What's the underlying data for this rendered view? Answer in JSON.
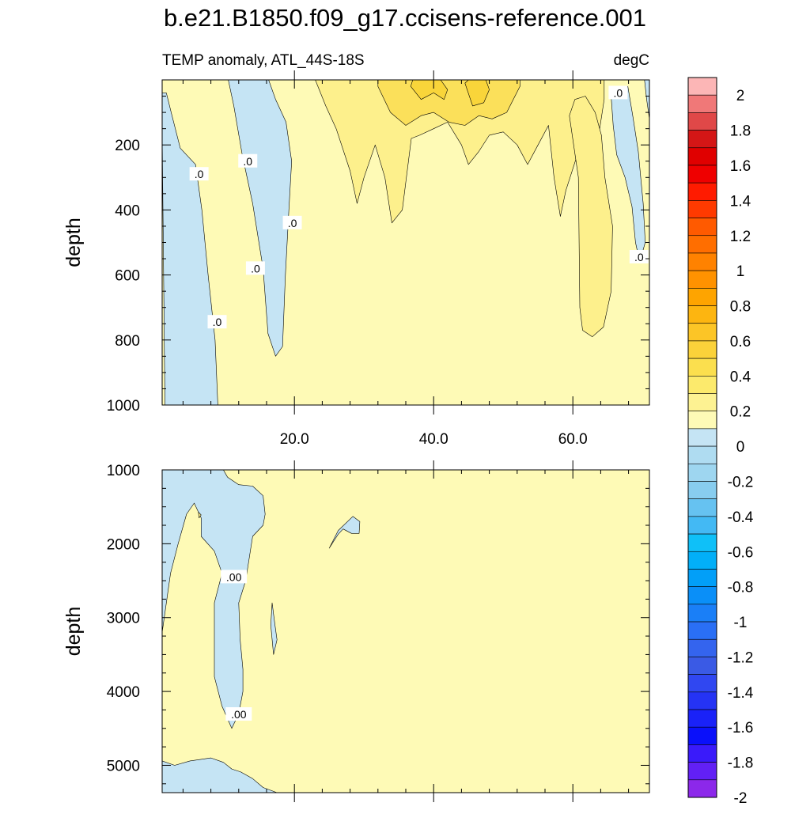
{
  "title": "b.e21.B1850.f09_g17.ccisens-reference.001",
  "subtitle_left": "TEMP anomaly, ATL_44S-18S",
  "subtitle_right": "degC",
  "colors": {
    "pos_fill": "#fefab6",
    "neg_fill": "#c5e4f4",
    "pos_medium": "#fdf08c",
    "pos_strong": "#fbe05a",
    "pos_deep": "#f9d53a",
    "outline": "#000000"
  },
  "chart_data": [
    {
      "type": "heatmap",
      "panel": "upper",
      "ylabel": "depth",
      "xlim": [
        1,
        71
      ],
      "ylim": [
        0,
        1000
      ],
      "y_inverted": true,
      "x_ticks": [
        20,
        40,
        60
      ],
      "x_tick_labels": [
        "20.0",
        "40.0",
        "60.0"
      ],
      "x_tick_labels_position": "bottom",
      "y_ticks": [
        200,
        400,
        600,
        800,
        1000
      ],
      "y_tick_labels": [
        "200",
        "400",
        "600",
        "800",
        "1000"
      ],
      "contour_labels": [
        {
          "text": ".0",
          "x": 6.3,
          "y": 290
        },
        {
          "text": ".0",
          "x": 13.3,
          "y": 250
        },
        {
          "text": ".0",
          "x": 19.7,
          "y": 440
        },
        {
          "text": ".0",
          "x": 14.4,
          "y": 580
        },
        {
          "text": ".0",
          "x": 8.9,
          "y": 745
        },
        {
          "text": ".0",
          "x": 66.5,
          "y": 40
        },
        {
          "text": ".0",
          "x": 69.5,
          "y": 545
        }
      ],
      "regions": [
        {
          "sign": "negative",
          "level": "0 to -0.2",
          "points": [
            [
              1,
              160
            ],
            [
              1.4,
              1000
            ],
            [
              9,
              1000
            ],
            [
              8.6,
              800
            ],
            [
              7.6,
              600
            ],
            [
              6.7,
              400
            ],
            [
              5.8,
              260
            ],
            [
              3.6,
              210
            ],
            [
              2.3,
              100
            ],
            [
              1.6,
              40
            ],
            [
              1,
              40
            ]
          ]
        },
        {
          "sign": "negative",
          "level": "0 to -0.2",
          "points": [
            [
              10.5,
              0
            ],
            [
              11.3,
              80
            ],
            [
              12.5,
              230
            ],
            [
              14,
              380
            ],
            [
              15.5,
              580
            ],
            [
              16.2,
              780
            ],
            [
              17.3,
              850
            ],
            [
              18.3,
              820
            ],
            [
              18.7,
              600
            ],
            [
              19.2,
              400
            ],
            [
              19.6,
              250
            ],
            [
              18.8,
              130
            ],
            [
              17.3,
              60
            ],
            [
              16.3,
              0
            ]
          ]
        },
        {
          "sign": "negative",
          "level": "0 to -0.2",
          "points": [
            [
              65.4,
              20
            ],
            [
              65.8,
              140
            ],
            [
              66.3,
              230
            ],
            [
              67.5,
              300
            ],
            [
              68.5,
              390
            ],
            [
              69,
              500
            ],
            [
              69.6,
              560
            ],
            [
              70.4,
              500
            ],
            [
              70.1,
              380
            ],
            [
              69.4,
              220
            ],
            [
              68.6,
              110
            ],
            [
              67.9,
              20
            ]
          ]
        },
        {
          "sign": "negative",
          "level": "0 to -0.2",
          "points": [
            [
              70.3,
              0
            ],
            [
              71,
              0
            ],
            [
              71,
              120
            ],
            [
              70.6,
              60
            ]
          ]
        },
        {
          "sign": "positive",
          "level": "0 to 0.2",
          "points": [
            [
              23,
              0
            ],
            [
              24.5,
              80
            ],
            [
              26,
              150
            ],
            [
              28,
              280
            ],
            [
              29,
              380
            ],
            [
              30,
              300
            ],
            [
              31.6,
              200
            ],
            [
              33,
              300
            ],
            [
              34,
              440
            ],
            [
              35.5,
              400
            ],
            [
              36.8,
              180
            ],
            [
              38,
              170
            ],
            [
              40,
              150
            ],
            [
              42,
              130
            ],
            [
              44,
              200
            ],
            [
              45,
              260
            ],
            [
              46.5,
              220
            ],
            [
              48,
              170
            ],
            [
              50,
              160
            ],
            [
              52,
              200
            ],
            [
              53.5,
              260
            ],
            [
              55,
              200
            ],
            [
              56.5,
              140
            ],
            [
              57.3,
              300
            ],
            [
              58.2,
              420
            ],
            [
              59,
              340
            ],
            [
              60.5,
              240
            ],
            [
              61.5,
              400
            ],
            [
              62.5,
              330
            ],
            [
              63.5,
              200
            ],
            [
              64.5,
              60
            ],
            [
              64.5,
              0
            ]
          ]
        },
        {
          "sign": "positive",
          "level": "0 to 0.2",
          "points": [
            [
              59.5,
              110
            ],
            [
              60.8,
              300
            ],
            [
              60.9,
              500
            ],
            [
              61,
              700
            ],
            [
              61.4,
              770
            ],
            [
              62.8,
              790
            ],
            [
              64.4,
              760
            ],
            [
              65.5,
              650
            ],
            [
              65.7,
              450
            ],
            [
              64.6,
              300
            ],
            [
              64.1,
              170
            ],
            [
              63.2,
              100
            ],
            [
              61.8,
              50
            ],
            [
              60.3,
              60
            ]
          ]
        },
        {
          "sign": "positive",
          "level": "0.2 to 0.4",
          "points": [
            [
              32,
              20
            ],
            [
              33.8,
              100
            ],
            [
              36,
              140
            ],
            [
              38.2,
              110
            ],
            [
              40,
              100
            ],
            [
              42.2,
              130
            ],
            [
              44.5,
              140
            ],
            [
              46.5,
              110
            ],
            [
              48.4,
              120
            ],
            [
              50.5,
              100
            ],
            [
              52.4,
              20
            ],
            [
              52.4,
              0
            ],
            [
              32,
              0
            ]
          ]
        },
        {
          "sign": "positive",
          "level": "0.4 to 0.6",
          "points": [
            [
              36.7,
              20
            ],
            [
              38.2,
              60
            ],
            [
              40,
              40
            ],
            [
              41.5,
              60
            ],
            [
              42,
              30
            ],
            [
              41,
              0
            ],
            [
              37,
              0
            ]
          ]
        },
        {
          "sign": "positive",
          "level": "0.4 to 0.6",
          "points": [
            [
              44.5,
              10
            ],
            [
              45.6,
              80
            ],
            [
              47.2,
              70
            ],
            [
              48,
              30
            ],
            [
              47.5,
              0
            ],
            [
              45,
              0
            ]
          ]
        }
      ]
    },
    {
      "type": "heatmap",
      "panel": "lower",
      "ylabel": "depth",
      "xlim": [
        1,
        71
      ],
      "ylim": [
        1000,
        5370
      ],
      "y_inverted": true,
      "y_ticks": [
        1000,
        2000,
        3000,
        4000,
        5000
      ],
      "y_tick_labels": [
        "1000",
        "2000",
        "3000",
        "4000",
        "5000"
      ],
      "contour_labels": [
        {
          "text": ".00",
          "x": 11.3,
          "y": 2450
        },
        {
          "text": ".00",
          "x": 12,
          "y": 4310
        }
      ],
      "regions": [
        {
          "sign": "negative",
          "level": "0 to -0.2",
          "points": [
            [
              1,
              1000
            ],
            [
              1,
              3200
            ],
            [
              2.2,
              2400
            ],
            [
              3.3,
              2000
            ],
            [
              4.5,
              1600
            ],
            [
              5.6,
              1450
            ],
            [
              6.6,
              1650
            ],
            [
              6.6,
              1900
            ],
            [
              8.5,
              2100
            ],
            [
              9.6,
              2400
            ],
            [
              8.5,
              2800
            ],
            [
              8.5,
              3200
            ],
            [
              8.5,
              3800
            ],
            [
              9.6,
              4200
            ],
            [
              11,
              4500
            ],
            [
              12,
              4300
            ],
            [
              12.6,
              4000
            ],
            [
              12.6,
              3700
            ],
            [
              12.2,
              3300
            ],
            [
              12,
              2800
            ],
            [
              13,
              2500
            ],
            [
              13.5,
              2200
            ],
            [
              14,
              1900
            ],
            [
              15.5,
              1750
            ],
            [
              15.8,
              1600
            ],
            [
              15.5,
              1350
            ],
            [
              14,
              1220
            ],
            [
              12,
              1200
            ],
            [
              10.4,
              1100
            ],
            [
              9.8,
              1000
            ]
          ]
        },
        {
          "sign": "negative",
          "level": "0 to -0.2",
          "points": [
            [
              1,
              4940
            ],
            [
              1,
              5370
            ],
            [
              17.5,
              5370
            ],
            [
              15.5,
              5300
            ],
            [
              14,
              5180
            ],
            [
              12.3,
              5090
            ],
            [
              11,
              5050
            ],
            [
              9.8,
              4960
            ],
            [
              8,
              4900
            ],
            [
              5,
              4940
            ],
            [
              2.8,
              5000
            ]
          ]
        },
        {
          "sign": "negative",
          "level": "0 to -0.2",
          "points": [
            [
              16.8,
              2800
            ],
            [
              17.2,
              3100
            ],
            [
              17.5,
              3300
            ],
            [
              17,
              3500
            ],
            [
              16.6,
              3100
            ]
          ]
        },
        {
          "sign": "negative",
          "level": "0 to -0.2",
          "points": [
            [
              25,
              2060
            ],
            [
              26.3,
              1820
            ],
            [
              28.4,
              1630
            ],
            [
              29.4,
              1700
            ],
            [
              29.3,
              1860
            ],
            [
              28.2,
              1860
            ],
            [
              27,
              1800
            ],
            [
              26.3,
              1870
            ]
          ]
        },
        {
          "sign": "positive",
          "level": "0 to 0.2",
          "points": [
            [
              6.2,
              1570
            ],
            [
              6.6,
              1610
            ],
            [
              6.3,
              1650
            ]
          ]
        }
      ]
    }
  ],
  "colorbar": {
    "labels": [
      "2",
      "1.8",
      "1.6",
      "1.4",
      "1.2",
      "1",
      "0.8",
      "0.6",
      "0.4",
      "0.2",
      "0",
      "-0.2",
      "-0.4",
      "-0.6",
      "-0.8",
      "-1",
      "-1.2",
      "-1.4",
      "-1.6",
      "-1.8",
      "-2"
    ],
    "colors": [
      "#fcb6b6",
      "#f07878",
      "#e04848",
      "#d41616",
      "#e00000",
      "#ef0000",
      "#ff1b00",
      "#ff3a00",
      "#ff5a00",
      "#ff6e00",
      "#ff8200",
      "#ff9200",
      "#fea400",
      "#fdb510",
      "#fcc526",
      "#fbd23a",
      "#fbdf4e",
      "#fcea6c",
      "#fdf292",
      "#fefab6",
      "#c5e4f4",
      "#afdcf1",
      "#9ed6f0",
      "#88cdef",
      "#66c2f1",
      "#43b9f4",
      "#0fc0f8",
      "#02aff8",
      "#029ff8",
      "#0a8ff8",
      "#1a7ff7",
      "#2a6ff5",
      "#3464ee",
      "#3a5ae5",
      "#3047f1",
      "#2533f4",
      "#1a22f8",
      "#0a10fa",
      "#3a1afa",
      "#6220f5",
      "#8c28ea"
    ]
  }
}
